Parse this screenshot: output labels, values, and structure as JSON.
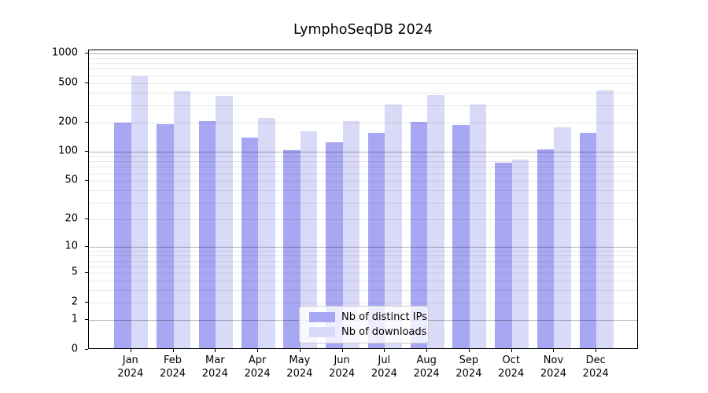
{
  "chart_data": {
    "type": "bar",
    "title": "LymphoSeqDB 2024",
    "categories": [
      "Jan",
      "Feb",
      "Mar",
      "Apr",
      "May",
      "Jun",
      "Jul",
      "Aug",
      "Sep",
      "Oct",
      "Nov",
      "Dec"
    ],
    "year_label": "2024",
    "series": [
      {
        "name": "Nb of distinct IPs",
        "color": "#a7a7f3",
        "values": [
          190,
          183,
          200,
          135,
          100,
          120,
          152,
          196,
          180,
          75,
          103,
          150
        ]
      },
      {
        "name": "Nb of downloads",
        "color": "#d9d9f8",
        "values": [
          570,
          400,
          360,
          215,
          155,
          200,
          295,
          365,
          295,
          80,
          172,
          410
        ]
      }
    ],
    "yscale": "log(value+1)",
    "ylim": [
      0,
      1075
    ],
    "yticks": [
      0,
      1,
      2,
      5,
      10,
      20,
      50,
      100,
      200,
      500,
      1000
    ],
    "ytick_labels": [
      "0",
      "1",
      "2",
      "5",
      "10",
      "20",
      "50",
      "100",
      "200",
      "500",
      "1000"
    ],
    "major_gridlines": [
      1,
      10,
      100,
      1000
    ],
    "minor_gridlines": [
      2,
      3,
      4,
      5,
      6,
      7,
      8,
      9,
      20,
      30,
      40,
      50,
      60,
      70,
      80,
      90,
      200,
      300,
      400,
      500,
      600,
      700,
      800,
      900
    ],
    "grid": true,
    "legend_position": "lower center",
    "colors": {
      "major_grid": "rgba(0,0,0,0.30)",
      "minor_grid": "rgba(0,0,0,0.085)",
      "spine": "#000000",
      "text": "#000000",
      "background": "#ffffff"
    }
  }
}
